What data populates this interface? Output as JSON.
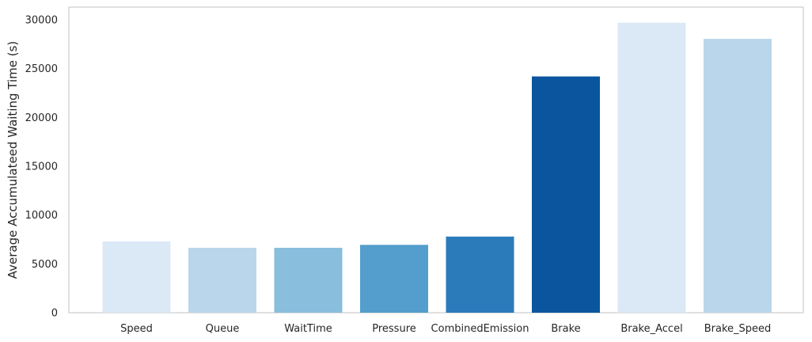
{
  "chart_data": {
    "type": "bar",
    "title": "",
    "xlabel": "",
    "ylabel": "Average Accumulateed Waiting Time (s)",
    "categories": [
      "Speed",
      "Queue",
      "WaitTime",
      "Pressure",
      "CombinedEmission",
      "Brake",
      "Brake_Accel",
      "Brake_Speed"
    ],
    "values": [
      7300,
      6650,
      6650,
      6950,
      7800,
      24200,
      29700,
      28050
    ],
    "colors": [
      "#dbe9f6",
      "#bad6eb",
      "#89bedc",
      "#539ecd",
      "#2b7bba",
      "#0b559f",
      "#dbe9f6",
      "#bad6eb"
    ],
    "ylim": [
      0,
      31300
    ],
    "yticks": [
      0,
      5000,
      10000,
      15000,
      20000,
      25000,
      30000
    ],
    "grid": false,
    "legend": "none"
  }
}
